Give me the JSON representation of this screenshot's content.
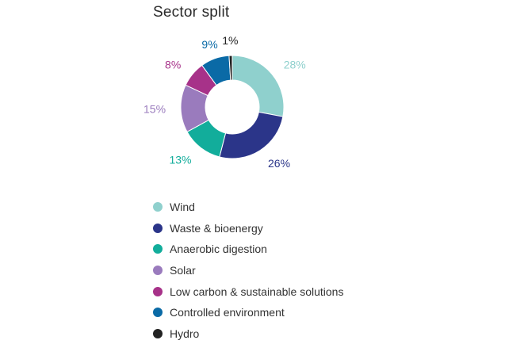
{
  "chart_data": {
    "type": "pie",
    "subtype": "donut",
    "title": "Sector split",
    "legend_position": "bottom",
    "series": [
      {
        "name": "Wind",
        "value": 28,
        "label": "28%",
        "color": "#8fd0cd"
      },
      {
        "name": "Waste & bioenergy",
        "value": 26,
        "label": "26%",
        "color": "#2b3589"
      },
      {
        "name": "Anaerobic digestion",
        "value": 13,
        "label": "13%",
        "color": "#12ad9b"
      },
      {
        "name": "Solar",
        "value": 15,
        "label": "15%",
        "color": "#9a7bbd"
      },
      {
        "name": "Low carbon & sustainable solutions",
        "value": 8,
        "label": "8%",
        "color": "#a73289"
      },
      {
        "name": "Controlled environment",
        "value": 9,
        "label": "9%",
        "color": "#0a6aa6"
      },
      {
        "name": "Hydro",
        "value": 1,
        "label": "1%",
        "color": "#222222"
      }
    ]
  }
}
